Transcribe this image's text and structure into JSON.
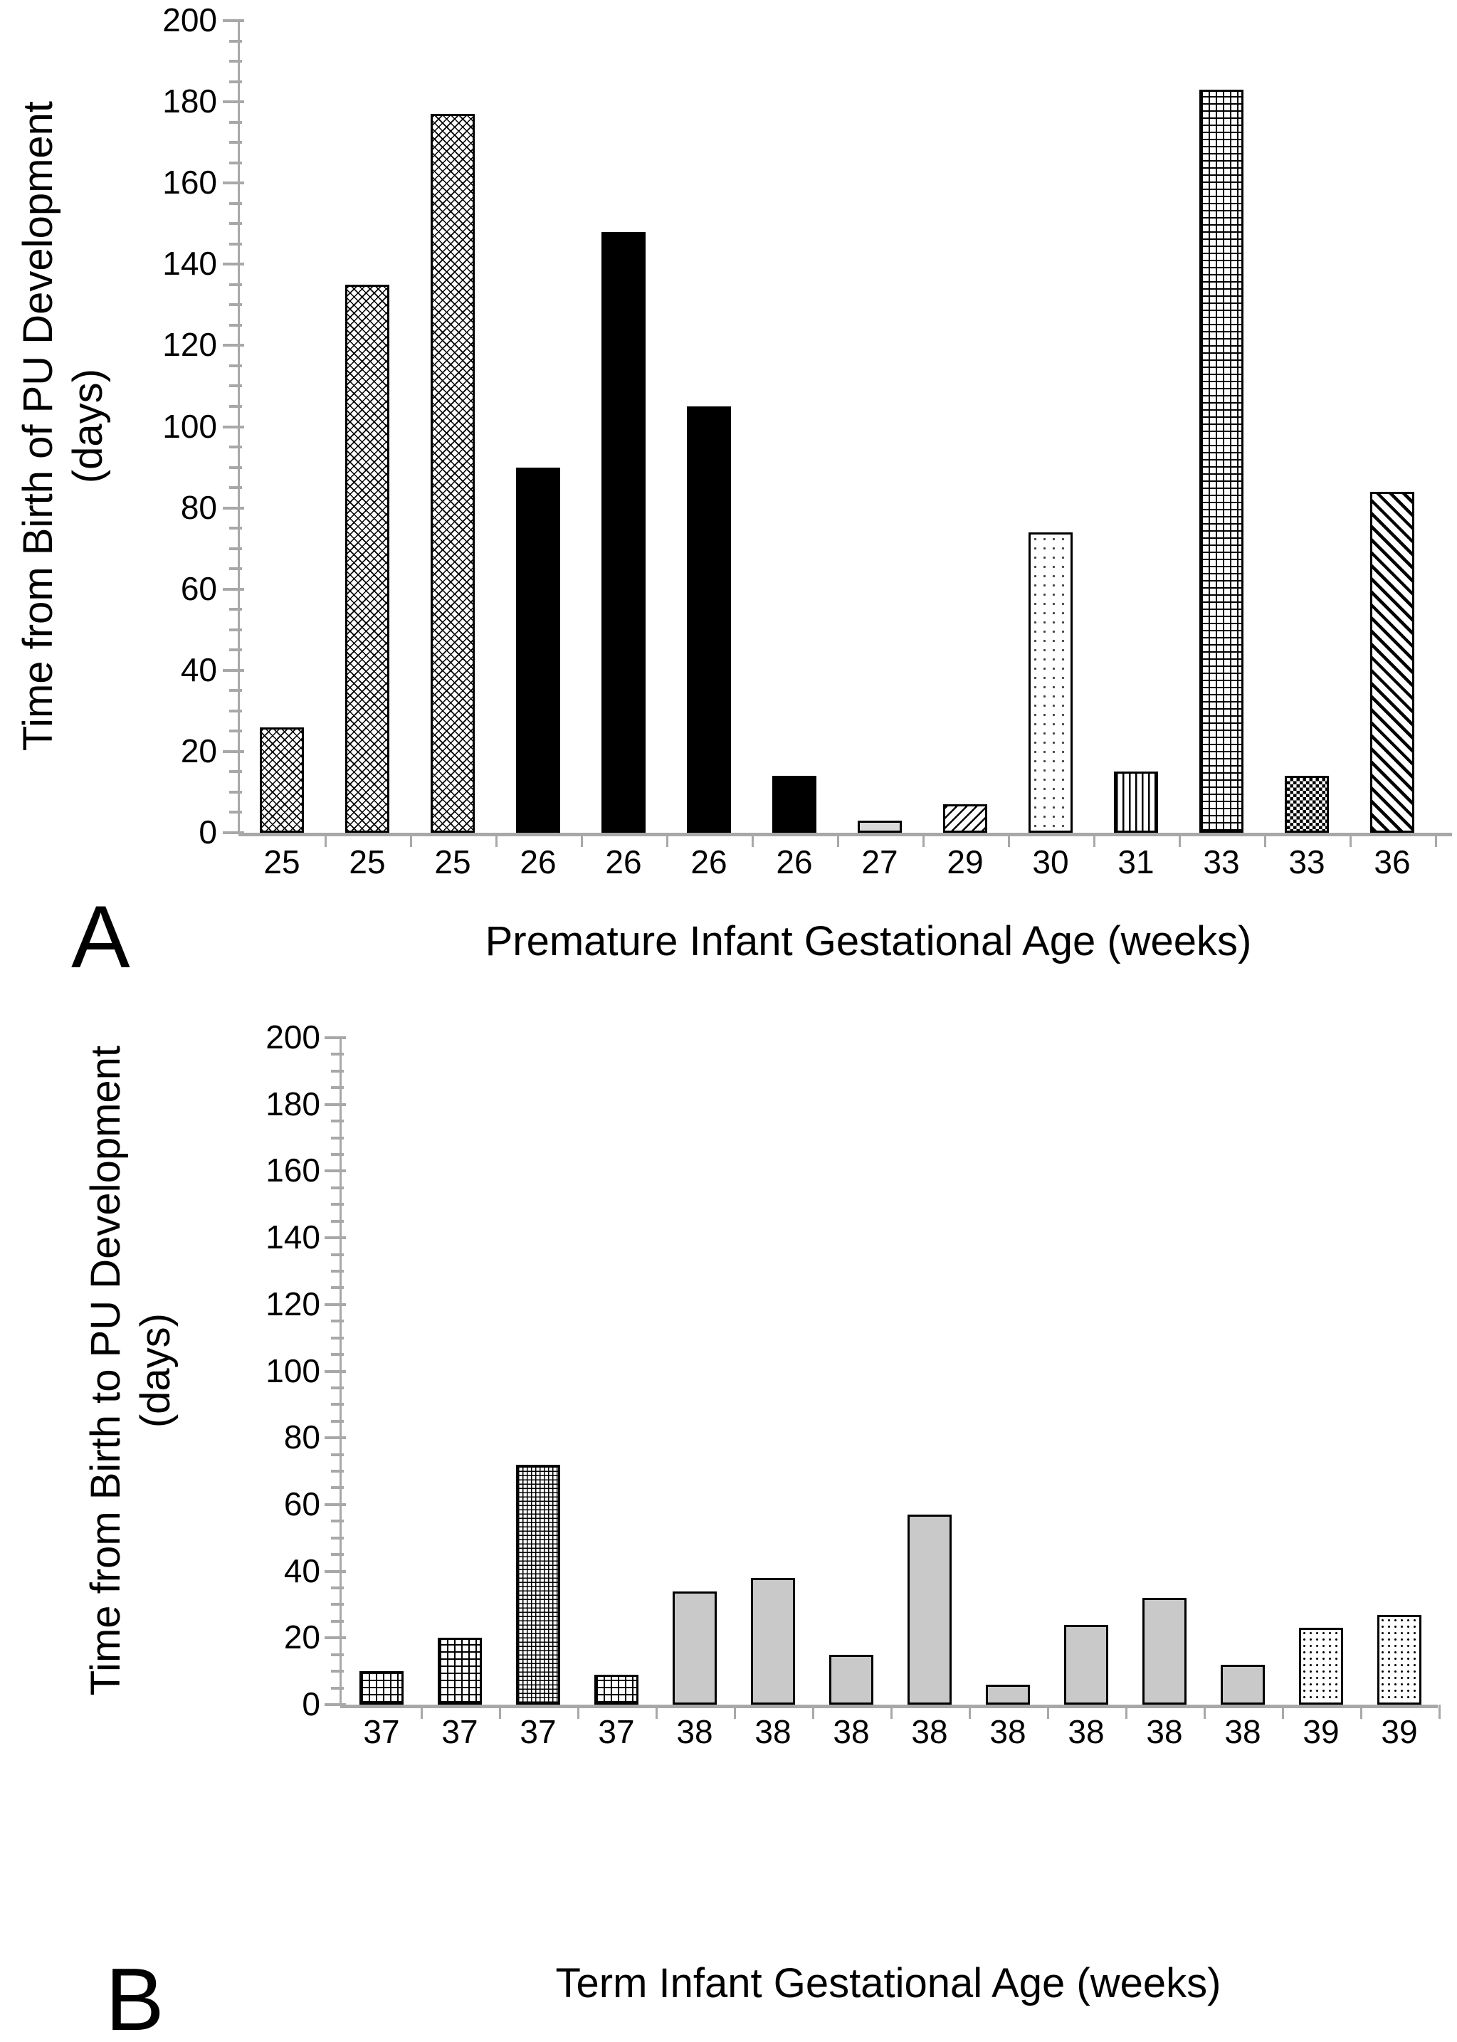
{
  "colors": {
    "axis": "#a8a8a8",
    "text": "#000000",
    "bar_black": "#000000",
    "bar_gray_light": "#d9d9d9",
    "bar_gray": "#c9c9c9"
  },
  "chart_data": [
    {
      "panel": "A",
      "type": "bar",
      "title": "",
      "xlabel": "Premature Infant Gestational Age (weeks)",
      "ylabel_line1": "Time from Birth of PU Development",
      "ylabel_line2": "(days)",
      "categories": [
        "25",
        "25",
        "25",
        "26",
        "26",
        "26",
        "26",
        "27",
        "29",
        "30",
        "31",
        "33",
        "33",
        "36"
      ],
      "values": [
        26,
        135,
        177,
        90,
        148,
        105,
        14,
        3,
        7,
        74,
        15,
        183,
        14,
        84
      ],
      "patterns": [
        "weave",
        "weave",
        "weave",
        "black",
        "black",
        "black",
        "black",
        "gray-light",
        "diag-thin",
        "dots-sparse",
        "vlines",
        "grid",
        "checker",
        "diag-thick"
      ],
      "ylim": [
        0,
        200
      ],
      "ytick_major": 20,
      "ytick_minor": 5,
      "grid": false,
      "legend": "none"
    },
    {
      "panel": "B",
      "type": "bar",
      "title": "",
      "xlabel": "Term Infant Gestational Age (weeks)",
      "ylabel_line1": "Time from Birth to PU Development",
      "ylabel_line2": "(days)",
      "categories": [
        "37",
        "37",
        "37",
        "37",
        "38",
        "38",
        "38",
        "38",
        "38",
        "38",
        "38",
        "38",
        "39",
        "39"
      ],
      "values": [
        10,
        20,
        72,
        9,
        34,
        38,
        15,
        57,
        6,
        24,
        32,
        12,
        23,
        27
      ],
      "patterns": [
        "grid",
        "grid",
        "grid-dense",
        "grid",
        "gray",
        "gray",
        "gray",
        "gray",
        "gray",
        "gray",
        "gray",
        "gray",
        "dots",
        "dots"
      ],
      "ylim": [
        0,
        200
      ],
      "ytick_major": 20,
      "ytick_minor": 5,
      "grid": false,
      "legend": "none"
    }
  ]
}
